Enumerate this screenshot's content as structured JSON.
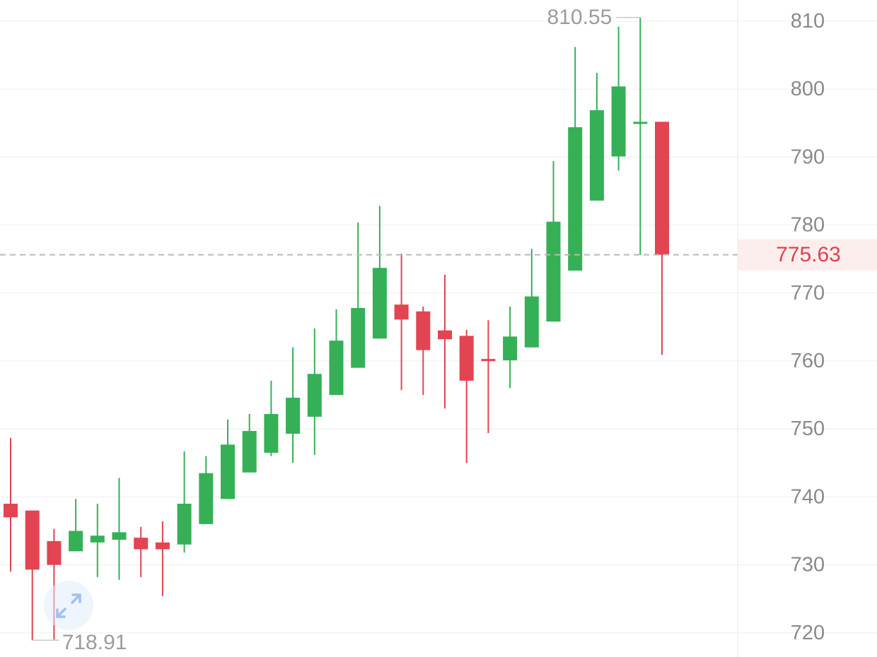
{
  "chart_data": {
    "type": "candlestick",
    "y_ticks": [
      "810",
      "800",
      "790",
      "780",
      "770",
      "760",
      "750",
      "740",
      "730",
      "720"
    ],
    "ylim": [
      717,
      813
    ],
    "grid": true,
    "current_price": {
      "value": 775.63,
      "label": "775.63",
      "color": "#e0404f"
    },
    "annotations": {
      "high": {
        "value": 810.55,
        "label": "810.55"
      },
      "low": {
        "value": 718.91,
        "label": "718.91"
      }
    },
    "colors": {
      "up": "#35b057",
      "down": "#e24451",
      "grid": "#eeeeee",
      "tick_text": "#8a8a8a"
    },
    "candles": [
      {
        "open": 739.0,
        "high": 748.7,
        "low": 729.0,
        "close": 737.0
      },
      {
        "open": 738.0,
        "high": 738.0,
        "low": 718.91,
        "close": 729.3
      },
      {
        "open": 733.5,
        "high": 735.3,
        "low": 719.0,
        "close": 730.0
      },
      {
        "open": 732.0,
        "high": 739.7,
        "low": 732.0,
        "close": 735.0
      },
      {
        "open": 733.3,
        "high": 739.0,
        "low": 728.2,
        "close": 734.3
      },
      {
        "open": 733.7,
        "high": 742.8,
        "low": 727.8,
        "close": 734.8
      },
      {
        "open": 734.0,
        "high": 735.6,
        "low": 728.2,
        "close": 732.3
      },
      {
        "open": 733.3,
        "high": 736.4,
        "low": 725.4,
        "close": 732.3
      },
      {
        "open": 733.0,
        "high": 746.7,
        "low": 731.8,
        "close": 739.0
      },
      {
        "open": 736.0,
        "high": 746.0,
        "low": 736.0,
        "close": 743.5
      },
      {
        "open": 739.7,
        "high": 751.4,
        "low": 739.7,
        "close": 747.7
      },
      {
        "open": 743.6,
        "high": 752.2,
        "low": 743.6,
        "close": 749.7
      },
      {
        "open": 746.5,
        "high": 757.1,
        "low": 746.0,
        "close": 752.2
      },
      {
        "open": 749.3,
        "high": 762.0,
        "low": 745.0,
        "close": 754.6
      },
      {
        "open": 751.8,
        "high": 764.8,
        "low": 746.2,
        "close": 758.1
      },
      {
        "open": 755.0,
        "high": 767.6,
        "low": 755.0,
        "close": 763.0
      },
      {
        "open": 759.0,
        "high": 780.4,
        "low": 759.0,
        "close": 767.8
      },
      {
        "open": 763.3,
        "high": 782.8,
        "low": 763.3,
        "close": 773.7
      },
      {
        "open": 768.3,
        "high": 775.8,
        "low": 755.7,
        "close": 766.1
      },
      {
        "open": 767.3,
        "high": 768.0,
        "low": 755.0,
        "close": 761.6
      },
      {
        "open": 764.5,
        "high": 772.7,
        "low": 753.0,
        "close": 763.2
      },
      {
        "open": 763.7,
        "high": 764.6,
        "low": 745.0,
        "close": 757.1
      },
      {
        "open": 760.3,
        "high": 766.0,
        "low": 749.4,
        "close": 760.2
      },
      {
        "open": 760.1,
        "high": 768.0,
        "low": 756.0,
        "close": 763.6
      },
      {
        "open": 762.0,
        "high": 776.5,
        "low": 762.0,
        "close": 769.5
      },
      {
        "open": 765.8,
        "high": 789.4,
        "low": 765.8,
        "close": 780.5
      },
      {
        "open": 773.3,
        "high": 806.2,
        "low": 773.3,
        "close": 794.4
      },
      {
        "open": 783.6,
        "high": 802.4,
        "low": 783.6,
        "close": 796.9
      },
      {
        "open": 790.1,
        "high": 809.2,
        "low": 788.0,
        "close": 800.4
      },
      {
        "open": 795.2,
        "high": 810.55,
        "low": 775.6,
        "close": 795.2
      },
      {
        "open": 795.2,
        "high": 795.2,
        "low": 760.9,
        "close": 775.63
      }
    ]
  },
  "controls": {
    "expand_icon": "expand-arrows-icon"
  }
}
